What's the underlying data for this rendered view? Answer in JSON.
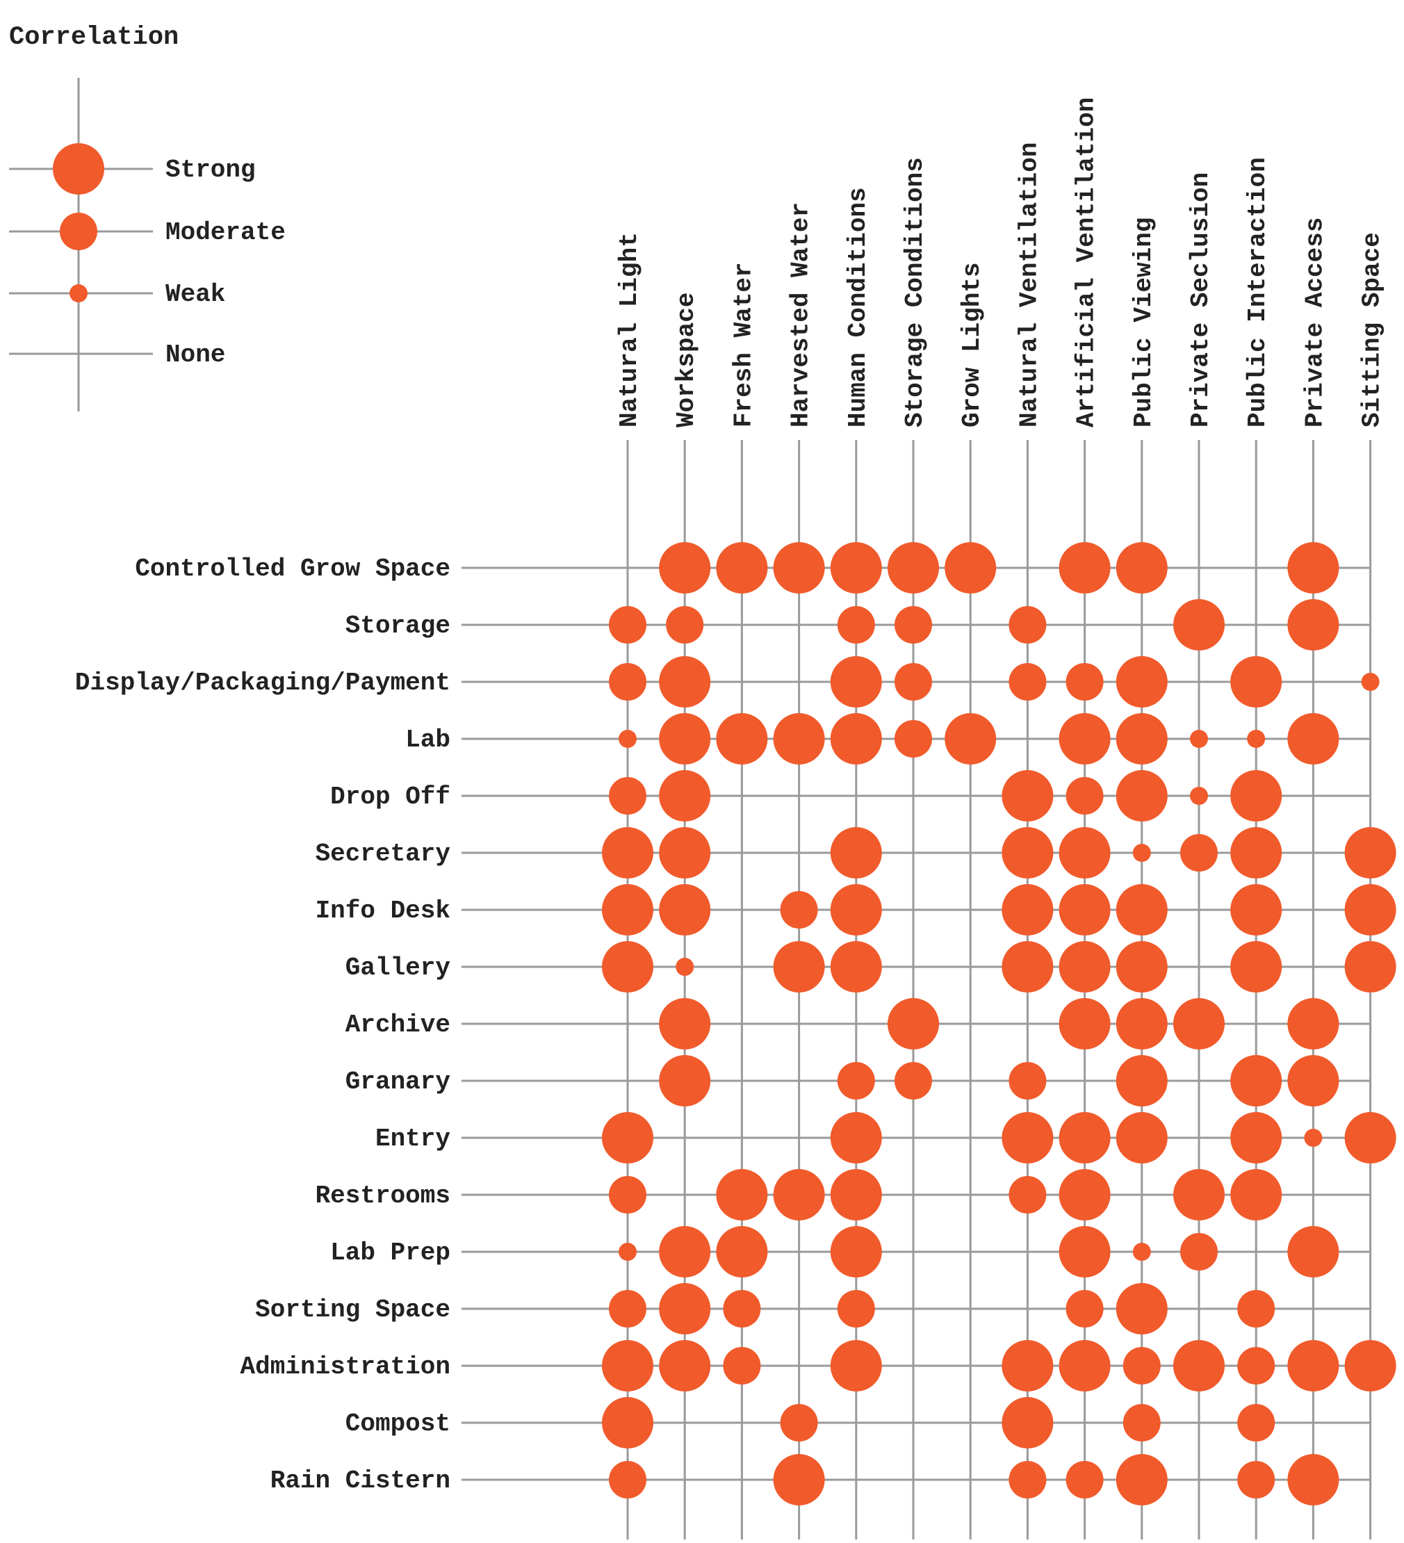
{
  "chart_data": {
    "type": "matrix",
    "title": "Correlation",
    "legend": {
      "placement": "top-left",
      "levels": [
        {
          "key": 3,
          "label": "Strong"
        },
        {
          "key": 2,
          "label": "Moderate"
        },
        {
          "key": 1,
          "label": "Weak"
        },
        {
          "key": 0,
          "label": "None"
        }
      ]
    },
    "columns": [
      "Natural Light",
      "Workspace",
      "Fresh Water",
      "Harvested Water",
      "Human Conditions",
      "Storage Conditions",
      "Grow Lights",
      "Natural Ventilation",
      "Artificial Ventilation",
      "Public Viewing",
      "Private Seclusion",
      "Public Interaction",
      "Private Access",
      "Sitting Space"
    ],
    "rows": [
      "Controlled Grow Space",
      "Storage",
      "Display/Packaging/Payment",
      "Lab",
      "Drop Off",
      "Secretary",
      "Info Desk",
      "Gallery",
      "Archive",
      "Granary",
      "Entry",
      "Restrooms",
      "Lab Prep",
      "Sorting Space",
      "Administration",
      "Compost",
      "Rain Cistern"
    ],
    "values": [
      [
        0,
        3,
        3,
        3,
        3,
        3,
        3,
        0,
        3,
        3,
        0,
        0,
        3,
        0
      ],
      [
        2,
        2,
        0,
        0,
        2,
        2,
        0,
        2,
        0,
        0,
        3,
        0,
        3,
        0
      ],
      [
        2,
        3,
        0,
        0,
        3,
        2,
        0,
        2,
        2,
        3,
        0,
        3,
        0,
        1
      ],
      [
        1,
        3,
        3,
        3,
        3,
        2,
        3,
        0,
        3,
        3,
        1,
        1,
        3,
        0
      ],
      [
        2,
        3,
        0,
        0,
        0,
        0,
        0,
        3,
        2,
        3,
        1,
        3,
        0,
        0
      ],
      [
        3,
        3,
        0,
        0,
        3,
        0,
        0,
        3,
        3,
        1,
        2,
        3,
        0,
        3
      ],
      [
        3,
        3,
        0,
        2,
        3,
        0,
        0,
        3,
        3,
        3,
        0,
        3,
        0,
        3
      ],
      [
        3,
        1,
        0,
        3,
        3,
        0,
        0,
        3,
        3,
        3,
        0,
        3,
        0,
        3
      ],
      [
        0,
        3,
        0,
        0,
        0,
        3,
        0,
        0,
        3,
        3,
        3,
        0,
        3,
        0
      ],
      [
        0,
        3,
        0,
        0,
        2,
        2,
        0,
        2,
        0,
        3,
        0,
        3,
        3,
        0
      ],
      [
        3,
        0,
        0,
        0,
        3,
        0,
        0,
        3,
        3,
        3,
        0,
        3,
        1,
        3
      ],
      [
        2,
        0,
        3,
        3,
        3,
        0,
        0,
        2,
        3,
        0,
        3,
        3,
        0,
        0
      ],
      [
        1,
        3,
        3,
        0,
        3,
        0,
        0,
        0,
        3,
        1,
        2,
        0,
        3,
        0
      ],
      [
        2,
        3,
        2,
        0,
        2,
        0,
        0,
        0,
        2,
        3,
        0,
        2,
        0,
        0
      ],
      [
        3,
        3,
        2,
        0,
        3,
        0,
        0,
        3,
        3,
        2,
        3,
        2,
        3,
        3
      ],
      [
        3,
        0,
        0,
        2,
        0,
        0,
        0,
        3,
        0,
        2,
        0,
        2,
        0,
        0
      ],
      [
        2,
        0,
        0,
        3,
        0,
        0,
        0,
        2,
        2,
        3,
        0,
        2,
        3,
        0
      ]
    ]
  },
  "colors": {
    "dot": "#f15a2b",
    "line": "#9a9a9a",
    "text": "#222222"
  }
}
